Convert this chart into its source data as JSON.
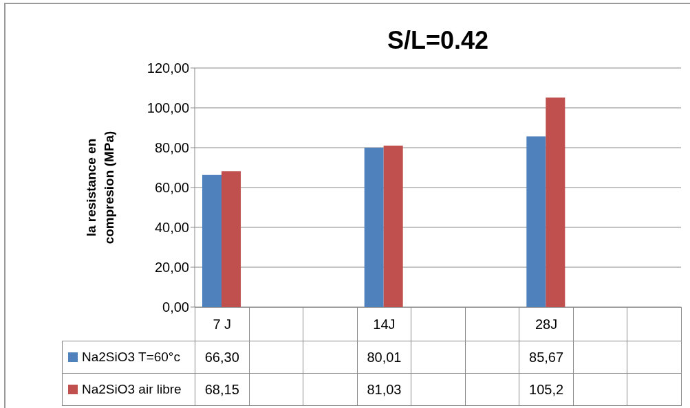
{
  "chart_data": {
    "type": "bar",
    "title": "S/L=0.42",
    "ylabel": "la resistance en compresion (MPa)",
    "categories": [
      "7 J",
      null,
      null,
      "14J",
      null,
      null,
      "28J",
      null,
      null
    ],
    "series": [
      {
        "name": "Na2SiO3 T=60°c",
        "color": "#4f81bd",
        "values": [
          66.3,
          null,
          null,
          80.01,
          null,
          null,
          85.67,
          null,
          null
        ],
        "value_labels": [
          "66,30",
          null,
          null,
          "80,01",
          null,
          null,
          "85,67",
          null,
          null
        ]
      },
      {
        "name": "Na2SiO3  air libre",
        "color": "#c0504d",
        "values": [
          68.15,
          null,
          null,
          81.03,
          null,
          null,
          105.2,
          null,
          null
        ],
        "value_labels": [
          "68,15",
          null,
          null,
          "81,03",
          null,
          null,
          "105,2",
          null,
          null
        ]
      }
    ],
    "ylim": [
      0,
      120
    ],
    "yticks": [
      {
        "value": 0,
        "label": "0,00"
      },
      {
        "value": 20,
        "label": "20,00"
      },
      {
        "value": 40,
        "label": "40,00"
      },
      {
        "value": 60,
        "label": "60,00"
      },
      {
        "value": 80,
        "label": "80,00"
      },
      {
        "value": 100,
        "label": "100,00"
      },
      {
        "value": 120,
        "label": "120,00"
      }
    ],
    "grid": "y",
    "legend": "bottom"
  }
}
